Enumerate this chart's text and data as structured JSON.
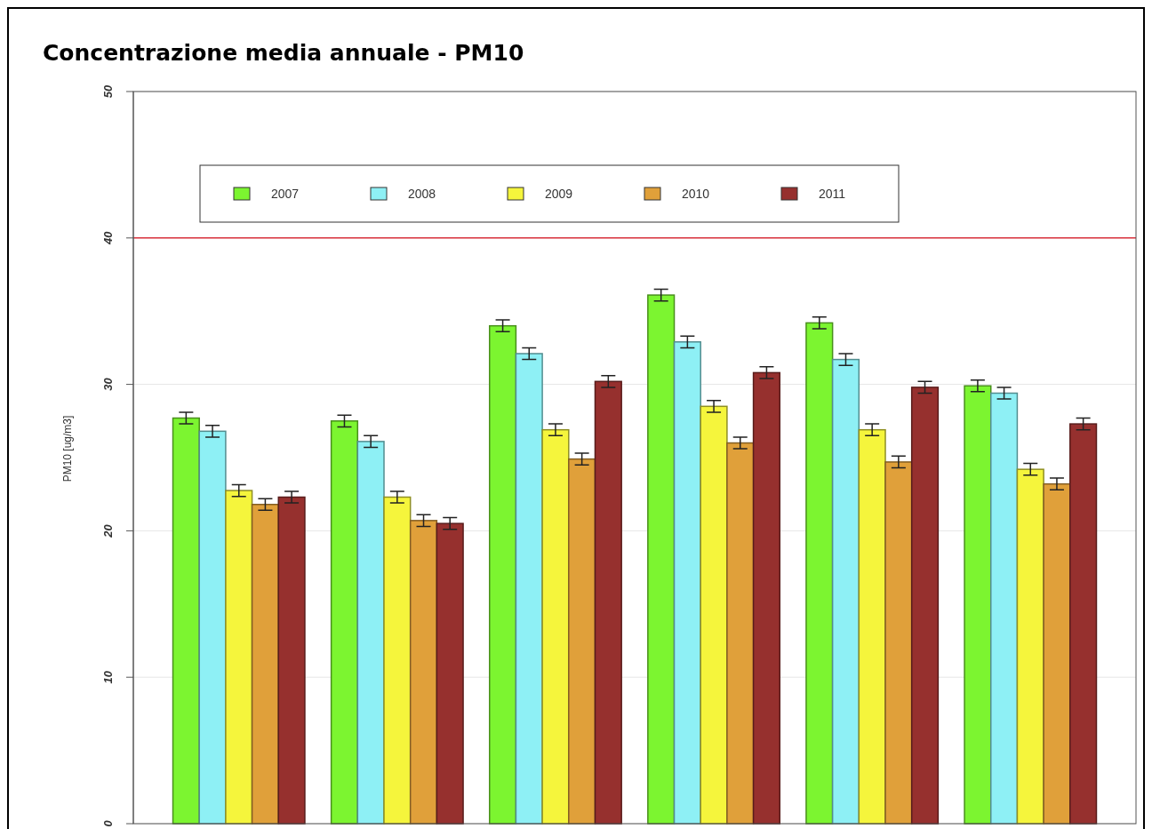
{
  "chart_data": {
    "type": "bar",
    "title": "Concentrazione media annuale - PM10",
    "ylabel": "PM10 [ug/m3]",
    "categories": [
      null,
      null,
      null,
      null,
      null,
      null
    ],
    "series": [
      {
        "name": "2007",
        "color": "#7cf530",
        "values": [
          27.7,
          27.5,
          34.0,
          36.1,
          34.2,
          29.9
        ],
        "errors": [
          0.4,
          0.4,
          0.4,
          0.4,
          0.4,
          0.4
        ]
      },
      {
        "name": "2008",
        "color": "#8ef0f5",
        "values": [
          26.8,
          26.1,
          32.1,
          32.9,
          31.7,
          29.4
        ],
        "errors": [
          0.4,
          0.4,
          0.4,
          0.4,
          0.4,
          0.4
        ]
      },
      {
        "name": "2009",
        "color": "#f5f53c",
        "values": [
          22.75,
          22.3,
          26.9,
          28.5,
          26.9,
          24.2
        ],
        "errors": [
          0.4,
          0.4,
          0.4,
          0.4,
          0.4,
          0.4
        ]
      },
      {
        "name": "2010",
        "color": "#e0a03a",
        "values": [
          21.8,
          20.7,
          24.9,
          26.0,
          24.7,
          23.2
        ],
        "errors": [
          0.4,
          0.4,
          0.4,
          0.4,
          0.4,
          0.4
        ]
      },
      {
        "name": "2011",
        "color": "#96302e",
        "values": [
          22.3,
          20.5,
          30.2,
          30.8,
          29.8,
          27.3
        ],
        "errors": [
          0.4,
          0.4,
          0.4,
          0.4,
          0.4,
          0.4
        ]
      }
    ],
    "ylim": [
      0,
      50
    ],
    "yticks": [
      0,
      10,
      20,
      30,
      40,
      50
    ],
    "grid": "y",
    "legend": "top",
    "ref_lines": [
      {
        "axis": "y",
        "value": 40,
        "color": "#d9323c"
      }
    ]
  }
}
